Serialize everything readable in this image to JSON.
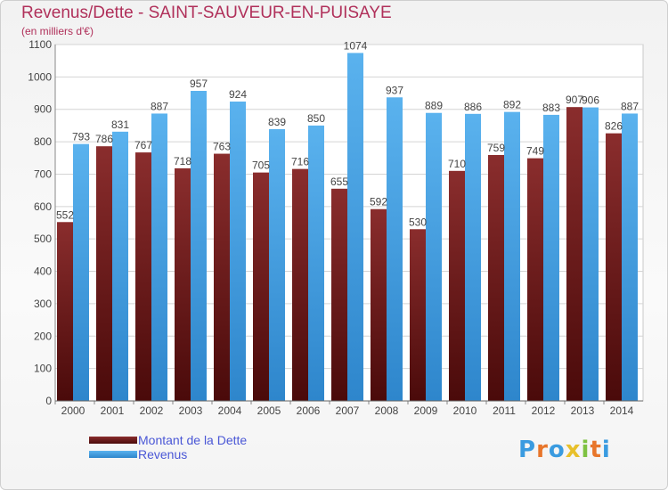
{
  "title": "Revenus/Dette - SAINT-SAUVEUR-EN-PUISAYE",
  "subtitle": "(en milliers d'€)",
  "logo": {
    "text": "Proxiti",
    "letter_colors": [
      "#3a9be0",
      "#e8762b",
      "#3a9be0",
      "#e8c02b",
      "#7ec242",
      "#e8762b",
      "#3a9be0"
    ]
  },
  "chart_data": {
    "type": "bar",
    "title": "Revenus/Dette - SAINT-SAUVEUR-EN-PUISAYE",
    "subtitle": "(en milliers d'€)",
    "categories": [
      "2000",
      "2001",
      "2002",
      "2003",
      "2004",
      "2005",
      "2006",
      "2007",
      "2008",
      "2009",
      "2010",
      "2011",
      "2012",
      "2013",
      "2014"
    ],
    "series": [
      {
        "name": "Montant de la Dette",
        "color": "#7a1f1f",
        "values": [
          552,
          786,
          767,
          718,
          763,
          705,
          716,
          655,
          592,
          530,
          710,
          759,
          749,
          907,
          826
        ]
      },
      {
        "name": "Revenus",
        "color": "#4ea8e8",
        "values": [
          793,
          831,
          887,
          957,
          924,
          839,
          850,
          1074,
          937,
          889,
          886,
          892,
          883,
          906,
          887
        ]
      }
    ],
    "yticks": [
      0,
      100,
      200,
      300,
      400,
      500,
      600,
      700,
      800,
      900,
      1000,
      1100
    ],
    "ylim": [
      0,
      1100
    ],
    "grid": true,
    "legend_position": "bottom-left"
  }
}
